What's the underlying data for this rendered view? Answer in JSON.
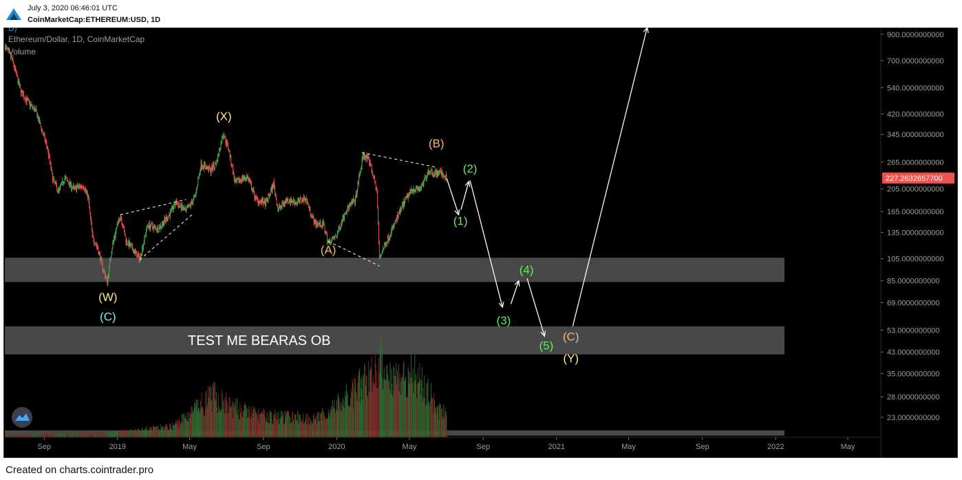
{
  "header": {
    "datetime": "July 3, 2020 06:46:01 UTC",
    "symbol": "CoinMarketCap:ETHEREUM:USD, 1D"
  },
  "legend": {
    "series_title": "Ethereum/Dollar, 1D, CoinMarketCap",
    "volume_label": "Volume",
    "corner_glyph": "D)"
  },
  "footer": {
    "credit": "Created on charts.cointrader.pro"
  },
  "colors": {
    "background": "#000000",
    "up": "#4caf50",
    "down": "#ef5350",
    "price_tag": "#ef5350",
    "zone": "#484848",
    "wave_yellow": "#ffeb84",
    "wave_cyan": "#7fe8ff",
    "wave_orange": "#ffb36b",
    "wave_green": "#5cf05c",
    "arrow": "#ffffff"
  },
  "icons": {
    "logo": "cointrader-logo-icon",
    "tradingview": "tradingview-logo-icon"
  },
  "chart_data": {
    "type": "candlestick",
    "title": "Ethereum/Dollar, 1D, CoinMarketCap",
    "scale": "log",
    "ylim": [
      19,
      960
    ],
    "current_price": "227.2632657700",
    "y_ticks": [
      {
        "value": 900,
        "label": "900.0000000000"
      },
      {
        "value": 700,
        "label": "700.0000000000"
      },
      {
        "value": 540,
        "label": "540.0000000000"
      },
      {
        "value": 420,
        "label": "420.0000000000"
      },
      {
        "value": 345,
        "label": "345.0000000000"
      },
      {
        "value": 265,
        "label": "265.0000000000"
      },
      {
        "value": 205,
        "label": "205.0000000000"
      },
      {
        "value": 165,
        "label": "165.0000000000"
      },
      {
        "value": 135,
        "label": "135.0000000000"
      },
      {
        "value": 105,
        "label": "105.0000000000"
      },
      {
        "value": 85,
        "label": "85.0000000000"
      },
      {
        "value": 69,
        "label": "69.0000000000"
      },
      {
        "value": 53,
        "label": "53.0000000000"
      },
      {
        "value": 43,
        "label": "43.0000000000"
      },
      {
        "value": 35,
        "label": "35.0000000000"
      },
      {
        "value": 28,
        "label": "28.0000000000"
      },
      {
        "value": 23,
        "label": "23.0000000000"
      }
    ],
    "x_ticks": [
      "Sep",
      "2019",
      "May",
      "Sep",
      "2020",
      "May",
      "Sep",
      "2021",
      "May",
      "Sep",
      "2022",
      "May"
    ],
    "x_tick_dates": [
      "2018-09-01",
      "2019-01-01",
      "2019-05-01",
      "2019-09-01",
      "2020-01-01",
      "2020-05-01",
      "2020-09-01",
      "2021-01-01",
      "2021-05-01",
      "2021-09-01",
      "2022-01-01",
      "2022-05-01"
    ],
    "x_range": [
      "2018-06-25",
      "2022-06-25"
    ],
    "price_path": [
      [
        "2018-06-28",
        800
      ],
      [
        "2018-07-10",
        700
      ],
      [
        "2018-07-24",
        520
      ],
      [
        "2018-08-05",
        470
      ],
      [
        "2018-08-18",
        430
      ],
      [
        "2018-09-06",
        305
      ],
      [
        "2018-09-15",
        225
      ],
      [
        "2018-09-25",
        200
      ],
      [
        "2018-10-05",
        228
      ],
      [
        "2018-10-20",
        205
      ],
      [
        "2018-11-05",
        212
      ],
      [
        "2018-11-13",
        190
      ],
      [
        "2018-11-20",
        130
      ],
      [
        "2018-11-28",
        118
      ],
      [
        "2018-12-08",
        95
      ],
      [
        "2018-12-15",
        84
      ],
      [
        "2018-12-22",
        115
      ],
      [
        "2018-12-30",
        140
      ],
      [
        "2019-01-06",
        160
      ],
      [
        "2019-01-15",
        125
      ],
      [
        "2019-02-07",
        105
      ],
      [
        "2019-02-20",
        145
      ],
      [
        "2019-03-10",
        140
      ],
      [
        "2019-03-28",
        160
      ],
      [
        "2019-04-08",
        180
      ],
      [
        "2019-04-25",
        165
      ],
      [
        "2019-05-10",
        190
      ],
      [
        "2019-05-20",
        260
      ],
      [
        "2019-06-05",
        245
      ],
      [
        "2019-06-15",
        265
      ],
      [
        "2019-06-26",
        350
      ],
      [
        "2019-07-05",
        300
      ],
      [
        "2019-07-16",
        215
      ],
      [
        "2019-07-25",
        225
      ],
      [
        "2019-08-05",
        230
      ],
      [
        "2019-08-20",
        185
      ],
      [
        "2019-09-05",
        178
      ],
      [
        "2019-09-18",
        215
      ],
      [
        "2019-09-25",
        168
      ],
      [
        "2019-10-10",
        185
      ],
      [
        "2019-10-26",
        180
      ],
      [
        "2019-11-10",
        188
      ],
      [
        "2019-11-25",
        148
      ],
      [
        "2019-12-10",
        145
      ],
      [
        "2019-12-18",
        122
      ],
      [
        "2019-12-31",
        130
      ],
      [
        "2020-01-15",
        165
      ],
      [
        "2020-02-01",
        185
      ],
      [
        "2020-02-14",
        285
      ],
      [
        "2020-02-25",
        265
      ],
      [
        "2020-03-08",
        200
      ],
      [
        "2020-03-12",
        105
      ],
      [
        "2020-03-16",
        112
      ],
      [
        "2020-03-31",
        135
      ],
      [
        "2020-04-20",
        175
      ],
      [
        "2020-05-05",
        205
      ],
      [
        "2020-05-20",
        205
      ],
      [
        "2020-06-02",
        245
      ],
      [
        "2020-06-12",
        238
      ],
      [
        "2020-06-22",
        240
      ],
      [
        "2020-07-02",
        227
      ]
    ],
    "volume_level": [
      [
        "2018-07-01",
        0.03
      ],
      [
        "2018-11-01",
        0.05
      ],
      [
        "2019-01-01",
        0.07
      ],
      [
        "2019-04-01",
        0.14
      ],
      [
        "2019-06-10",
        0.55
      ],
      [
        "2019-07-10",
        0.4
      ],
      [
        "2019-09-01",
        0.28
      ],
      [
        "2019-12-01",
        0.25
      ],
      [
        "2020-02-01",
        0.6
      ],
      [
        "2020-03-12",
        1.0
      ],
      [
        "2020-04-10",
        0.78
      ],
      [
        "2020-05-10",
        0.88
      ],
      [
        "2020-06-20",
        0.35
      ],
      [
        "2020-07-02",
        0.3
      ]
    ],
    "zones": [
      {
        "from": 84,
        "to": 106
      },
      {
        "from": 42,
        "to": 55,
        "label": "TEST ME BEARAS OB"
      },
      {
        "from": 19.3,
        "to": 20.3
      }
    ],
    "wave_labels": [
      {
        "text": "(W)",
        "date": "2018-12-16",
        "price": 70,
        "color": "wave_yellow"
      },
      {
        "text": "(C)",
        "date": "2018-12-16",
        "price": 58,
        "color": "wave_cyan"
      },
      {
        "text": "(X)",
        "date": "2019-06-27",
        "price": 395,
        "color": "wave_yellow"
      },
      {
        "text": "(A)",
        "date": "2019-12-18",
        "price": 110,
        "color": "wave_orange"
      },
      {
        "text": "(B)",
        "date": "2020-06-15",
        "price": 305,
        "color": "wave_orange"
      },
      {
        "text": "(1)",
        "date": "2020-07-25",
        "price": 145,
        "color": "wave_green"
      },
      {
        "text": "(2)",
        "date": "2020-08-10",
        "price": 240,
        "color": "wave_green"
      },
      {
        "text": "(3)",
        "date": "2020-10-05",
        "price": 56,
        "color": "wave_green"
      },
      {
        "text": "(4)",
        "date": "2020-11-12",
        "price": 91,
        "color": "wave_green"
      },
      {
        "text": "(5)",
        "date": "2020-12-15",
        "price": 44,
        "color": "wave_green"
      },
      {
        "text": "(C)",
        "date": "2021-01-25",
        "price": 48,
        "color": "wave_orange"
      },
      {
        "text": "(Y)",
        "date": "2021-01-25",
        "price": 39,
        "color": "wave_yellow"
      }
    ],
    "dashed_lines": [
      [
        [
          "2019-01-06",
          160
        ],
        [
          "2019-04-25",
          185
        ]
      ],
      [
        [
          "2019-02-07",
          104
        ],
        [
          "2019-05-05",
          160
        ]
      ],
      [
        [
          "2020-02-12",
          290
        ],
        [
          "2020-06-15",
          252
        ]
      ],
      [
        [
          "2019-12-18",
          124
        ],
        [
          "2020-03-12",
          98
        ]
      ]
    ],
    "arrows": [
      [
        [
          "2020-07-02",
          227
        ],
        [
          "2020-07-22",
          160
        ]
      ],
      [
        [
          "2020-07-26",
          168
        ],
        [
          "2020-08-08",
          220
        ]
      ],
      [
        [
          "2020-08-10",
          222
        ],
        [
          "2020-10-03",
          66
        ]
      ],
      [
        [
          "2020-10-17",
          68
        ],
        [
          "2020-10-30",
          85
        ]
      ],
      [
        [
          "2020-11-13",
          87
        ],
        [
          "2020-12-12",
          50
        ]
      ],
      [
        [
          "2021-01-28",
          55
        ],
        [
          "2021-06-01",
          960
        ]
      ]
    ]
  }
}
